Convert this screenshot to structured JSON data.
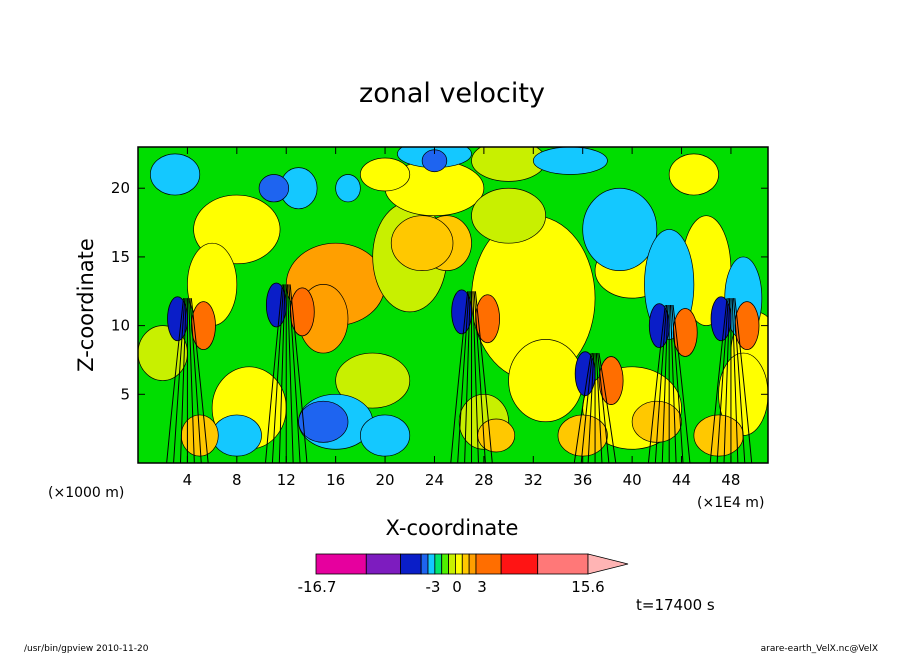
{
  "chart_data": {
    "type": "heatmap",
    "title": "zonal velocity",
    "xlabel": "X-coordinate",
    "ylabel": "Z-coordinate",
    "x_unit_left": "(×1000 m)",
    "x_unit_right": "(×1E4 m)",
    "x_ticks": [
      4,
      8,
      12,
      16,
      20,
      24,
      28,
      32,
      36,
      40,
      44,
      48
    ],
    "y_ticks": [
      5,
      10,
      15,
      20
    ],
    "xlim": [
      0,
      51
    ],
    "ylim": [
      0,
      23
    ],
    "colorbar": {
      "colors": [
        "#e6009e",
        "#7d1cbf",
        "#0a1ec8",
        "#1e64f0",
        "#14c8ff",
        "#00e66e",
        "#50f000",
        "#c8f000",
        "#ffff00",
        "#ffc800",
        "#ff9f00",
        "#ff6e00",
        "#ff1414",
        "#ff7878",
        "#ffb4b4"
      ],
      "tick_labels": [
        "-16.7",
        "-3",
        "0",
        "3",
        "15.6"
      ],
      "tick_values": [
        -16.7,
        -3,
        0,
        3,
        15.6
      ]
    },
    "time_label": "t=17400 s",
    "jets_x": [
      4,
      12,
      27,
      37,
      43,
      48
    ]
  },
  "footer": {
    "left": "/usr/bin/gpview   2010-11-20",
    "right": "arare-earth_VelX.nc@VelX"
  }
}
